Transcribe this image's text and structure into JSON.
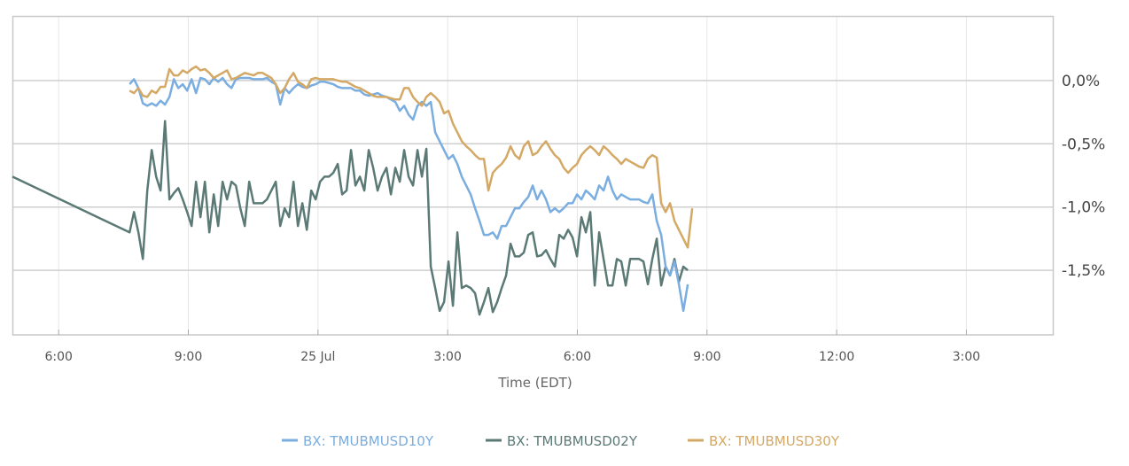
{
  "chart_data": {
    "type": "line",
    "title": "",
    "xlabel": "Time (EDT)",
    "ylabel": "",
    "x_units": "hours",
    "xlim": [
      4.93,
      29.0
    ],
    "ylim": [
      -2.01,
      0.51
    ],
    "x_ticks": [
      {
        "value": 6,
        "label": "6:00"
      },
      {
        "value": 9,
        "label": "9:00"
      },
      {
        "value": 12,
        "label": "25 Jul"
      },
      {
        "value": 15,
        "label": "3:00"
      },
      {
        "value": 18,
        "label": "6:00"
      },
      {
        "value": 21,
        "label": "9:00"
      },
      {
        "value": 24,
        "label": "12:00"
      },
      {
        "value": 27,
        "label": "3:00"
      }
    ],
    "y_ticks": [
      {
        "value": 0,
        "label": "0,0%"
      },
      {
        "value": -0.5,
        "label": "-0,5%"
      },
      {
        "value": -1.0,
        "label": "-1,0%"
      },
      {
        "value": -1.5,
        "label": "-1,5%"
      }
    ],
    "grid": true,
    "legend_position": "bottom-center",
    "series": [
      {
        "name": "BX: TMUBMUSD10Y",
        "color": "#7aade0",
        "x_start": 7.64,
        "x_step": 0.1025,
        "values": [
          -0.03,
          0.01,
          -0.06,
          -0.18,
          -0.2,
          -0.18,
          -0.2,
          -0.16,
          -0.19,
          -0.13,
          0.01,
          -0.06,
          -0.03,
          -0.08,
          0.01,
          -0.1,
          0.02,
          0.01,
          -0.03,
          0.02,
          -0.01,
          0.02,
          -0.03,
          -0.06,
          0.01,
          0.02,
          0.02,
          0.02,
          0.01,
          0.01,
          0.01,
          0.02,
          -0.01,
          -0.03,
          -0.19,
          -0.06,
          -0.1,
          -0.06,
          -0.03,
          -0.05,
          -0.06,
          -0.04,
          -0.03,
          -0.01,
          -0.01,
          -0.02,
          -0.03,
          -0.05,
          -0.06,
          -0.06,
          -0.06,
          -0.08,
          -0.08,
          -0.11,
          -0.12,
          -0.11,
          -0.1,
          -0.12,
          -0.13,
          -0.15,
          -0.17,
          -0.24,
          -0.2,
          -0.27,
          -0.31,
          -0.2,
          -0.17,
          -0.2,
          -0.17,
          -0.41,
          -0.48,
          -0.55,
          -0.62,
          -0.59,
          -0.66,
          -0.76,
          -0.83,
          -0.9,
          -1.01,
          -1.11,
          -1.22,
          -1.22,
          -1.2,
          -1.25,
          -1.15,
          -1.15,
          -1.08,
          -1.01,
          -1.01,
          -0.96,
          -0.92,
          -0.83,
          -0.94,
          -0.87,
          -0.94,
          -1.04,
          -1.01,
          -1.04,
          -1.01,
          -0.97,
          -0.97,
          -0.9,
          -0.94,
          -0.87,
          -0.9,
          -0.94,
          -0.83,
          -0.87,
          -0.76,
          -0.87,
          -0.94,
          -0.9,
          -0.92,
          -0.94,
          -0.94,
          -0.94,
          -0.96,
          -0.97,
          -0.9,
          -1.11,
          -1.22,
          -1.47,
          -1.54,
          -1.43,
          -1.61,
          -1.82,
          -1.61
        ]
      },
      {
        "name": "BX: TMUBMUSD02Y",
        "color": "#5b7a76",
        "prefix": [
          [
            4.93,
            -0.76
          ]
        ],
        "x_start": 7.64,
        "x_step": 0.1025,
        "values": [
          -1.2,
          -1.04,
          -1.2,
          -1.41,
          -0.87,
          -0.55,
          -0.76,
          -0.87,
          -0.32,
          -0.94,
          -0.89,
          -0.85,
          -0.94,
          -1.04,
          -1.15,
          -0.8,
          -1.08,
          -0.8,
          -1.2,
          -0.9,
          -1.15,
          -0.8,
          -0.94,
          -0.8,
          -0.83,
          -1.01,
          -1.15,
          -0.8,
          -0.97,
          -0.97,
          -0.97,
          -0.94,
          -0.87,
          -0.8,
          -1.15,
          -1.01,
          -1.08,
          -0.8,
          -1.15,
          -0.97,
          -1.18,
          -0.87,
          -0.94,
          -0.8,
          -0.76,
          -0.76,
          -0.73,
          -0.66,
          -0.9,
          -0.87,
          -0.55,
          -0.83,
          -0.76,
          -0.87,
          -0.55,
          -0.69,
          -0.87,
          -0.76,
          -0.69,
          -0.9,
          -0.69,
          -0.8,
          -0.55,
          -0.76,
          -0.83,
          -0.55,
          -0.76,
          -0.54,
          -1.47,
          -1.64,
          -1.82,
          -1.75,
          -1.43,
          -1.78,
          -1.2,
          -1.64,
          -1.62,
          -1.64,
          -1.68,
          -1.85,
          -1.75,
          -1.64,
          -1.83,
          -1.75,
          -1.64,
          -1.54,
          -1.29,
          -1.39,
          -1.39,
          -1.36,
          -1.22,
          -1.2,
          -1.39,
          -1.38,
          -1.34,
          -1.41,
          -1.47,
          -1.22,
          -1.25,
          -1.18,
          -1.24,
          -1.39,
          -1.08,
          -1.2,
          -1.04,
          -1.62,
          -1.2,
          -1.41,
          -1.62,
          -1.62,
          -1.41,
          -1.43,
          -1.62,
          -1.41,
          -1.41,
          -1.41,
          -1.43,
          -1.61,
          -1.41,
          -1.25,
          -1.62,
          -1.47,
          -1.54,
          -1.41,
          -1.59,
          -1.47,
          -1.5
        ]
      },
      {
        "name": "BX: TMUBMUSD30Y",
        "color": "#d4a865",
        "x_start": 7.64,
        "x_step": 0.1025,
        "values": [
          -0.08,
          -0.1,
          -0.06,
          -0.12,
          -0.13,
          -0.08,
          -0.1,
          -0.05,
          -0.05,
          0.09,
          0.04,
          0.04,
          0.08,
          0.06,
          0.09,
          0.11,
          0.08,
          0.09,
          0.06,
          0.02,
          0.04,
          0.06,
          0.08,
          0.01,
          0.02,
          0.04,
          0.06,
          0.05,
          0.04,
          0.06,
          0.06,
          0.04,
          0.02,
          -0.03,
          -0.1,
          -0.06,
          0.01,
          0.06,
          -0.01,
          -0.03,
          -0.06,
          0.01,
          0.02,
          0.01,
          0.01,
          0.01,
          0.01,
          0.0,
          -0.01,
          -0.01,
          -0.03,
          -0.05,
          -0.06,
          -0.08,
          -0.1,
          -0.12,
          -0.13,
          -0.13,
          -0.13,
          -0.14,
          -0.15,
          -0.15,
          -0.06,
          -0.06,
          -0.13,
          -0.17,
          -0.2,
          -0.13,
          -0.1,
          -0.13,
          -0.17,
          -0.26,
          -0.24,
          -0.34,
          -0.41,
          -0.48,
          -0.52,
          -0.55,
          -0.59,
          -0.62,
          -0.62,
          -0.87,
          -0.73,
          -0.69,
          -0.66,
          -0.61,
          -0.52,
          -0.59,
          -0.62,
          -0.52,
          -0.48,
          -0.59,
          -0.57,
          -0.52,
          -0.48,
          -0.54,
          -0.59,
          -0.62,
          -0.69,
          -0.73,
          -0.69,
          -0.66,
          -0.59,
          -0.55,
          -0.52,
          -0.55,
          -0.59,
          -0.52,
          -0.55,
          -0.59,
          -0.62,
          -0.66,
          -0.62,
          -0.64,
          -0.66,
          -0.68,
          -0.69,
          -0.62,
          -0.59,
          -0.61,
          -0.97,
          -1.04,
          -0.97,
          -1.11,
          -1.18,
          -1.25,
          -1.32,
          -1.01
        ]
      }
    ]
  }
}
